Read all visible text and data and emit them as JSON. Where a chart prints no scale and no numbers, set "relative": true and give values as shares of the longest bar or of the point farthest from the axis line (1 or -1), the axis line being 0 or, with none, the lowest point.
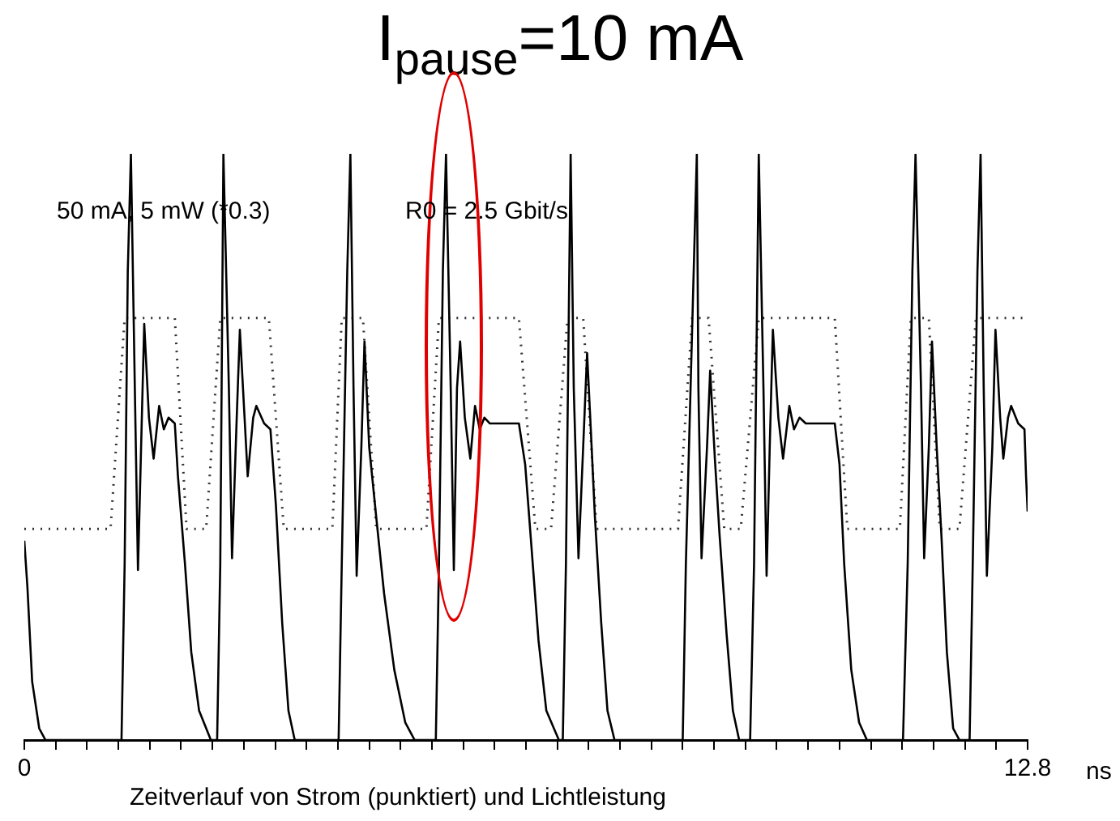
{
  "chart_data": {
    "type": "line",
    "title": "I$_{pause}$=10 mA",
    "xlabel": "Zeitverlauf von Strom (punktiert) und Lichtleistung",
    "relative": true,
    "annotations": [
      "50 mA, 5 mW (*0.3)",
      "R0 = 2.5 Gbit/s",
      "ns"
    ],
    "xlim": [
      0,
      12.8
    ],
    "xticks": [
      0,
      {
        "value": 0.4,
        "label": null
      },
      {
        "value": 0.8,
        "label": null
      },
      {
        "value": 1.2,
        "label": null
      },
      {
        "value": 1.6,
        "label": null
      },
      {
        "value": 2,
        "label": null
      },
      {
        "value": 2.4,
        "label": null
      },
      {
        "value": 2.8,
        "label": null
      },
      {
        "value": 3.2,
        "label": null
      },
      {
        "value": 3.6,
        "label": null
      },
      {
        "value": 4,
        "label": null
      },
      {
        "value": 4.4,
        "label": null
      },
      {
        "value": 4.8,
        "label": null
      },
      {
        "value": 5.2,
        "label": null
      },
      {
        "value": 5.6,
        "label": null
      },
      {
        "value": 6,
        "label": null
      },
      {
        "value": 6.4,
        "label": null
      },
      {
        "value": 6.8,
        "label": null
      },
      {
        "value": 7.2,
        "label": null
      },
      {
        "value": 7.6,
        "label": null
      },
      {
        "value": 8,
        "label": null
      },
      {
        "value": 8.4,
        "label": null
      },
      {
        "value": 8.8,
        "label": null
      },
      {
        "value": 9.2,
        "label": null
      },
      {
        "value": 9.6,
        "label": null
      },
      {
        "value": 10,
        "label": null
      },
      {
        "value": 10.4,
        "label": null
      },
      {
        "value": 10.8,
        "label": null
      },
      {
        "value": 11.2,
        "label": null
      },
      {
        "value": 11.6,
        "label": null
      },
      {
        "value": 12,
        "label": null
      },
      {
        "value": 12.4,
        "label": null
      },
      12.8
    ],
    "series": [
      {
        "color": "#000000",
        "line_style": "solid",
        "x": [
          0,
          0.04,
          0.1,
          0.19,
          0.27,
          1.24,
          1.28,
          1.32,
          1.36,
          1.41,
          1.45,
          1.49,
          1.53,
          1.59,
          1.65,
          1.72,
          1.78,
          1.84,
          1.92,
          1.96,
          2.05,
          2.13,
          2.23,
          2.38,
          2.46,
          2.5,
          2.54,
          2.61,
          2.65,
          2.71,
          2.75,
          2.81,
          2.85,
          2.92,
          2.96,
          3.06,
          3.14,
          3.21,
          3.29,
          3.37,
          3.45,
          4.01,
          4.05,
          4.12,
          4.16,
          4.2,
          4.24,
          4.3,
          4.34,
          4.4,
          4.49,
          4.59,
          4.72,
          4.86,
          4.98,
          5.25,
          5.29,
          5.34,
          5.38,
          5.44,
          5.48,
          5.52,
          5.56,
          5.62,
          5.69,
          5.75,
          5.81,
          5.87,
          5.94,
          6.31,
          6.39,
          6.47,
          6.56,
          6.66,
          6.82,
          6.87,
          6.91,
          6.97,
          7.01,
          7.07,
          7.13,
          7.18,
          7.22,
          7.28,
          7.36,
          7.44,
          7.53,
          8.4,
          8.44,
          8.52,
          8.58,
          8.6,
          8.64,
          8.71,
          8.75,
          8.81,
          8.87,
          8.96,
          9.04,
          9.12,
          9.26,
          9.31,
          9.37,
          9.43,
          9.47,
          9.51,
          9.55,
          9.62,
          9.68,
          9.76,
          9.82,
          9.89,
          9.97,
          10.34,
          10.4,
          10.46,
          10.55,
          10.65,
          10.75,
          11.21,
          11.27,
          11.33,
          11.37,
          11.44,
          11.48,
          11.54,
          11.58,
          11.64,
          11.7,
          11.77,
          11.85,
          11.93,
          12.06,
          12.1,
          12.16,
          12.2,
          12.24,
          12.28,
          12.35,
          12.39,
          12.45,
          12.49,
          12.55,
          12.59,
          12.68,
          12.76,
          12.78,
          12.8
        ],
        "values": [
          0.34,
          0.26,
          0.1,
          0.02,
          0,
          0,
          0.3,
          0.8,
          1,
          0.6,
          0.29,
          0.5,
          0.71,
          0.55,
          0.48,
          0.57,
          0.53,
          0.55,
          0.54,
          0.45,
          0.3,
          0.15,
          0.05,
          0,
          0,
          0.3,
          1,
          0.6,
          0.31,
          0.55,
          0.7,
          0.55,
          0.45,
          0.55,
          0.57,
          0.54,
          0.53,
          0.4,
          0.2,
          0.05,
          0,
          0,
          0.3,
          0.8,
          1,
          0.6,
          0.28,
          0.5,
          0.68,
          0.5,
          0.38,
          0.25,
          0.12,
          0.03,
          0,
          0,
          0.3,
          0.8,
          1,
          0.6,
          0.29,
          0.6,
          0.68,
          0.55,
          0.48,
          0.57,
          0.53,
          0.55,
          0.54,
          0.54,
          0.47,
          0.33,
          0.17,
          0.05,
          0,
          0,
          0.3,
          1,
          0.6,
          0.31,
          0.5,
          0.66,
          0.55,
          0.38,
          0.2,
          0.05,
          0,
          0,
          0.3,
          0.7,
          1,
          0.6,
          0.31,
          0.5,
          0.63,
          0.48,
          0.35,
          0.18,
          0.05,
          0,
          0,
          0.3,
          1,
          0.6,
          0.28,
          0.5,
          0.7,
          0.55,
          0.48,
          0.57,
          0.53,
          0.55,
          0.54,
          0.54,
          0.47,
          0.3,
          0.12,
          0.03,
          0,
          0,
          0.3,
          0.8,
          1,
          0.6,
          0.31,
          0.5,
          0.68,
          0.5,
          0.35,
          0.15,
          0.02,
          0,
          0,
          0.3,
          0.8,
          1,
          0.6,
          0.28,
          0.5,
          0.7,
          0.55,
          0.48,
          0.55,
          0.57,
          0.54,
          0.53,
          0.45,
          0.39
        ]
      },
      {
        "color": "#333333",
        "line_style": "dotted",
        "x": [
          0,
          1.1,
          1.28,
          1.92,
          2.07,
          2.32,
          2.5,
          3.12,
          3.31,
          3.93,
          4.05,
          4.32,
          4.49,
          5.13,
          5.29,
          6.31,
          6.52,
          6.72,
          6.93,
          7.13,
          7.3,
          8.34,
          8.52,
          8.73,
          8.93,
          9.14,
          9.37,
          10.34,
          10.5,
          11.17,
          11.31,
          11.54,
          11.68,
          11.93,
          12.14,
          12.74
        ],
        "values": [
          0.36,
          0.36,
          0.72,
          0.72,
          0.36,
          0.36,
          0.72,
          0.72,
          0.36,
          0.36,
          0.72,
          0.72,
          0.36,
          0.36,
          0.72,
          0.72,
          0.36,
          0.36,
          0.72,
          0.72,
          0.36,
          0.36,
          0.72,
          0.72,
          0.36,
          0.36,
          0.72,
          0.72,
          0.36,
          0.36,
          0.72,
          0.72,
          0.36,
          0.36,
          0.72,
          0.72
        ]
      }
    ]
  }
}
